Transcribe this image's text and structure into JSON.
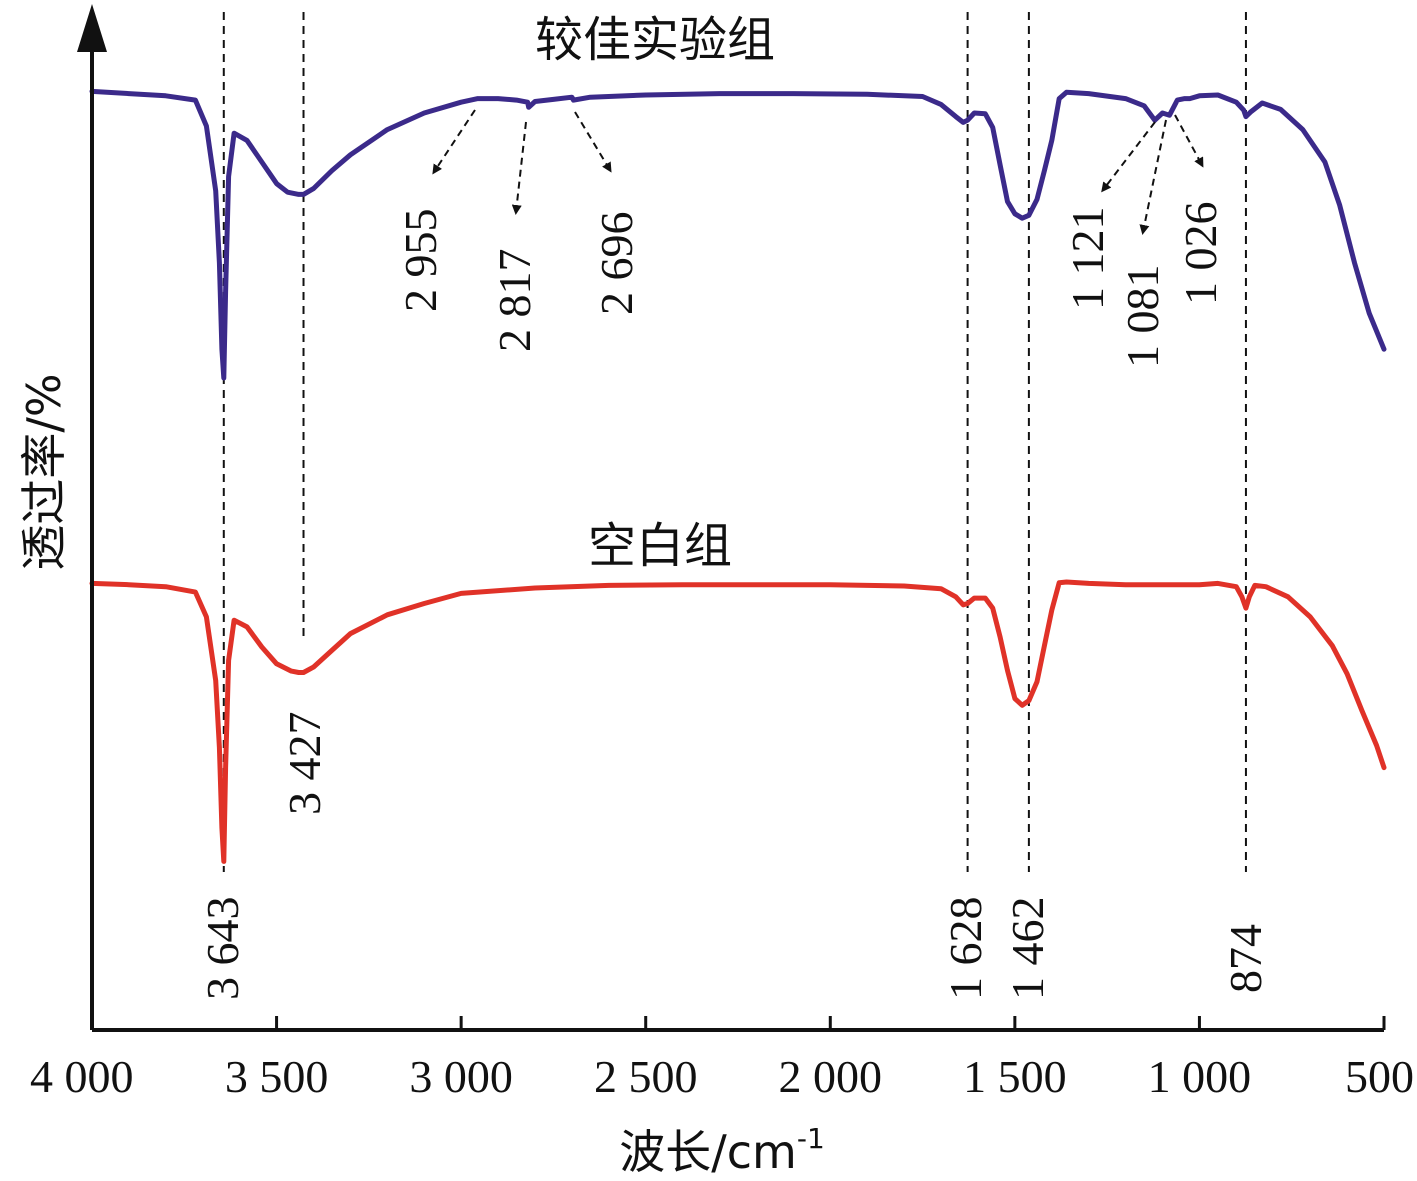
{
  "chart_data": {
    "type": "line",
    "title": "",
    "xlabel": "波长/cm",
    "xlabel_sup": "-1",
    "ylabel": "透过率/%",
    "xlim": [
      4000,
      500
    ],
    "x_ticks": [
      {
        "value": 4000,
        "label": "4 000"
      },
      {
        "value": 3500,
        "label": "3 500"
      },
      {
        "value": 3000,
        "label": "3 000"
      },
      {
        "value": 2500,
        "label": "2 500"
      },
      {
        "value": 2000,
        "label": "2 000"
      },
      {
        "value": 1500,
        "label": "1 500"
      },
      {
        "value": 1000,
        "label": "1 000"
      },
      {
        "value": 500,
        "label": "500"
      }
    ],
    "grid": false,
    "guide_lines": [
      3643,
      3427,
      1628,
      1462,
      874
    ],
    "series": [
      {
        "name": "较佳实验组",
        "color": "#3b2a8a",
        "x": [
          4000,
          3900,
          3800,
          3720,
          3690,
          3665,
          3655,
          3648,
          3643,
          3638,
          3630,
          3615,
          3580,
          3540,
          3500,
          3470,
          3440,
          3427,
          3400,
          3350,
          3300,
          3200,
          3100,
          3000,
          2955,
          2900,
          2850,
          2820,
          2817,
          2800,
          2750,
          2700,
          2696,
          2650,
          2500,
          2300,
          2100,
          1900,
          1750,
          1700,
          1660,
          1640,
          1628,
          1610,
          1580,
          1560,
          1540,
          1520,
          1500,
          1480,
          1462,
          1440,
          1420,
          1400,
          1380,
          1360,
          1300,
          1200,
          1150,
          1121,
          1100,
          1081,
          1060,
          1040,
          1026,
          1000,
          950,
          900,
          880,
          874,
          860,
          830,
          780,
          720,
          660,
          620,
          580,
          540,
          520,
          500
        ],
        "y": [
          99.8,
          99.5,
          99.2,
          98.6,
          95,
          86,
          76,
          64,
          60,
          72,
          88,
          94,
          93,
          90,
          87,
          85.8,
          85.5,
          85.5,
          86.3,
          88.8,
          91,
          94.5,
          96.8,
          98.3,
          98.8,
          98.8,
          98.6,
          98.3,
          97.6,
          98.4,
          98.7,
          99,
          98.6,
          99,
          99.3,
          99.5,
          99.5,
          99.4,
          99.1,
          98,
          96.3,
          95.5,
          95.8,
          96.8,
          96.7,
          94.8,
          89.6,
          84.5,
          82.8,
          82.2,
          82.6,
          84.8,
          88.8,
          93,
          98.8,
          99.7,
          99.5,
          98.8,
          97.8,
          95.8,
          96.8,
          96.5,
          98.6,
          98.8,
          98.8,
          99.2,
          99.3,
          98.3,
          97.2,
          96.3,
          97,
          98.2,
          97.3,
          94.5,
          90,
          84,
          76,
          69,
          66.5,
          64
        ]
      },
      {
        "name": "空白组",
        "color": "#e03228",
        "x": [
          4000,
          3900,
          3800,
          3720,
          3690,
          3665,
          3655,
          3648,
          3643,
          3638,
          3630,
          3615,
          3580,
          3540,
          3500,
          3460,
          3440,
          3427,
          3400,
          3350,
          3300,
          3200,
          3100,
          3000,
          2800,
          2600,
          2400,
          2200,
          2000,
          1800,
          1700,
          1660,
          1640,
          1628,
          1610,
          1580,
          1560,
          1540,
          1520,
          1500,
          1480,
          1462,
          1440,
          1420,
          1400,
          1380,
          1360,
          1300,
          1200,
          1000,
          950,
          900,
          885,
          874,
          865,
          850,
          820,
          760,
          700,
          640,
          600,
          560,
          520,
          500
        ],
        "y": [
          99.5,
          99.3,
          99.0,
          98.2,
          94.5,
          85,
          75,
          63,
          58,
          72,
          88,
          94,
          93,
          90,
          87.5,
          86.4,
          86.2,
          86.2,
          87.0,
          89.5,
          92,
          94.8,
          96.5,
          98,
          98.8,
          99.2,
          99.3,
          99.3,
          99.3,
          99.1,
          98.7,
          97.5,
          96.3,
          96.5,
          97.3,
          97.3,
          95.8,
          91.5,
          86.5,
          82.3,
          81.3,
          82,
          84.8,
          90.2,
          95.5,
          99.6,
          99.7,
          99.5,
          99.3,
          99.3,
          99.5,
          99.0,
          97.5,
          95.8,
          97.5,
          99.2,
          99,
          97.5,
          94.5,
          90.2,
          86,
          80.5,
          75.3,
          72
        ]
      }
    ],
    "annotations": [
      {
        "text": "3 643",
        "x": 3643,
        "series": "空白组"
      },
      {
        "text": "3 427",
        "x": 3427,
        "series": "空白组"
      },
      {
        "text": "1 628",
        "x": 1628,
        "series": "空白组"
      },
      {
        "text": "1 462",
        "x": 1462,
        "series": "空白组"
      },
      {
        "text": "874",
        "x": 874,
        "series": "空白组"
      },
      {
        "text": "2 955",
        "x": 2955,
        "series": "较佳实验组"
      },
      {
        "text": "2 817",
        "x": 2817,
        "series": "较佳实验组"
      },
      {
        "text": "2 696",
        "x": 2696,
        "series": "较佳实验组"
      },
      {
        "text": "1 121",
        "x": 1121,
        "series": "较佳实验组"
      },
      {
        "text": "1 081",
        "x": 1081,
        "series": "较佳实验组"
      },
      {
        "text": "1 026",
        "x": 1026,
        "series": "较佳实验组"
      }
    ]
  }
}
